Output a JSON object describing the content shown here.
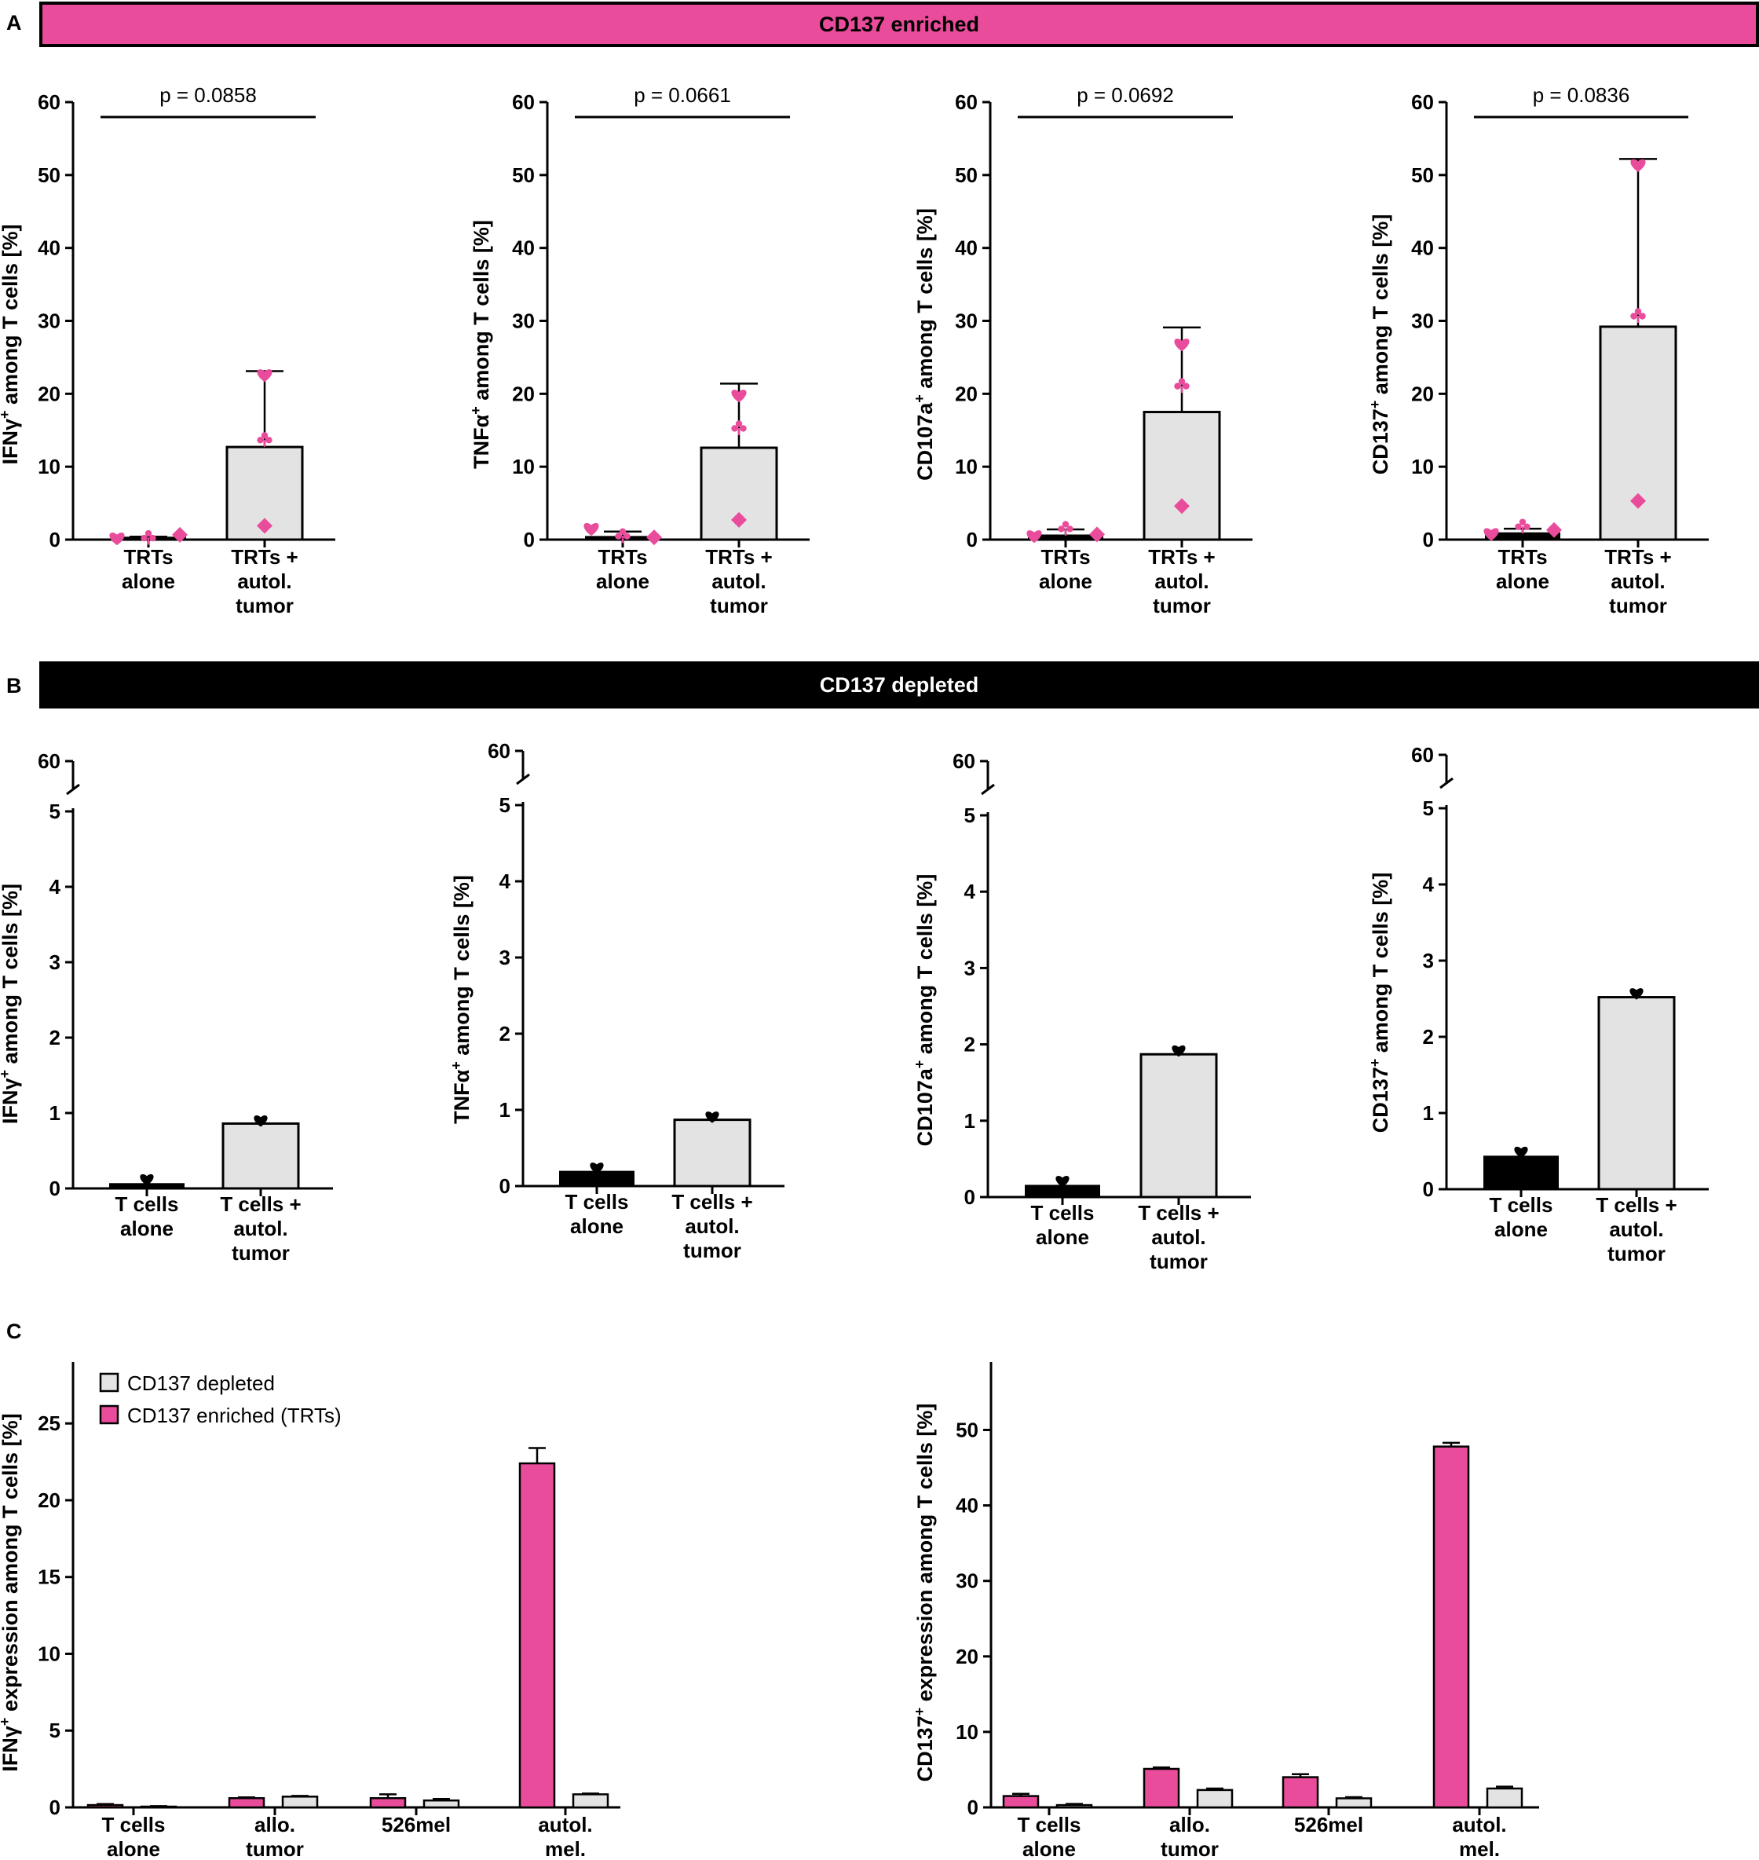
{
  "panel_labels": {
    "A": "A",
    "B": "B",
    "C": "C"
  },
  "banners": {
    "enriched": "CD137 enriched",
    "depleted": "CD137 depleted"
  },
  "colors": {
    "pink": "#e94c9a",
    "gray_bar": "#e3e3e3",
    "black": "#000000"
  },
  "chart_data": [
    {
      "id": "A1",
      "type": "bar",
      "categories": [
        "TRTs alone",
        "TRTs + autol. tumor"
      ],
      "values": [
        0.4,
        12.7
      ],
      "errors": [
        0.4,
        23.1
      ],
      "ylim": [
        0,
        60
      ],
      "yticks": [
        0,
        10,
        20,
        30,
        40,
        50,
        60
      ],
      "ylabel_main": "IFNγ",
      "ylabel_rest": " among T cells [%]",
      "ylabel_sup": "+",
      "pvalue": "p = 0.0858",
      "points": [
        [
          0.1,
          0.05,
          0.45
        ],
        [
          22.7,
          13.7,
          1.9
        ]
      ],
      "point_color": "#e94c9a"
    },
    {
      "id": "A2",
      "type": "bar",
      "categories": [
        "TRTs alone",
        "TRTs + autol. tumor"
      ],
      "values": [
        0.5,
        12.6
      ],
      "errors": [
        1.1,
        21.4
      ],
      "ylim": [
        0,
        60
      ],
      "yticks": [
        0,
        10,
        20,
        30,
        40,
        50,
        60
      ],
      "ylabel_main": "TNFα",
      "ylabel_rest": " among T cells [%]",
      "ylabel_sup": "+",
      "pvalue": "p = 0.0661",
      "points": [
        [
          1.4,
          0.3,
          0.1
        ],
        [
          19.9,
          15.3,
          2.7
        ]
      ],
      "point_color": "#e94c9a"
    },
    {
      "id": "A3",
      "type": "bar",
      "categories": [
        "TRTs alone",
        "TRTs + autol. tumor"
      ],
      "values": [
        0.7,
        17.5
      ],
      "errors": [
        1.4,
        29.1
      ],
      "ylim": [
        0,
        60
      ],
      "yticks": [
        0,
        10,
        20,
        30,
        40,
        50,
        60
      ],
      "ylabel_main": "CD107a",
      "ylabel_rest": " among T cells [%]",
      "ylabel_sup": "+",
      "pvalue": "p = 0.0692",
      "points": [
        [
          0.4,
          1.3,
          0.5
        ],
        [
          26.9,
          21.1,
          4.6
        ]
      ],
      "point_color": "#e94c9a"
    },
    {
      "id": "A4",
      "type": "bar",
      "categories": [
        "TRTs alone",
        "TRTs + autol. tumor"
      ],
      "values": [
        1.0,
        29.2
      ],
      "errors": [
        1.5,
        52.2
      ],
      "ylim": [
        0,
        60
      ],
      "yticks": [
        0,
        10,
        20,
        30,
        40,
        50,
        60
      ],
      "ylabel_main": "CD137",
      "ylabel_rest": " among T cells [%]",
      "ylabel_sup": "+",
      "pvalue": "p = 0.0836",
      "points": [
        [
          0.7,
          1.6,
          1.1
        ],
        [
          51.5,
          30.7,
          5.3
        ]
      ],
      "point_color": "#e94c9a"
    },
    {
      "id": "B1",
      "type": "bar",
      "categories": [
        "T cells alone",
        "T cells + autol. tumor"
      ],
      "values": [
        0.07,
        0.86
      ],
      "ylim": [
        0,
        5
      ],
      "yticks": [
        0,
        1,
        2,
        3,
        4,
        5
      ],
      "ytop_break": "60",
      "ylabel_main": "IFNγ",
      "ylabel_rest": " among T cells [%]",
      "ylabel_sup": "+",
      "points": [
        0.1,
        0.88
      ],
      "point_color": "#000000"
    },
    {
      "id": "B2",
      "type": "bar",
      "categories": [
        "T cells alone",
        "T cells + autol. tumor"
      ],
      "values": [
        0.2,
        0.87
      ],
      "ylim": [
        0,
        5
      ],
      "yticks": [
        0,
        1,
        2,
        3,
        4,
        5
      ],
      "ytop_break": "60",
      "ylabel_main": "TNFα",
      "ylabel_rest": " among T cells [%]",
      "ylabel_sup": "+",
      "points": [
        0.22,
        0.89
      ],
      "point_color": "#000000"
    },
    {
      "id": "B3",
      "type": "bar",
      "categories": [
        "T cells alone",
        "T cells + autol. tumor"
      ],
      "values": [
        0.16,
        1.87
      ],
      "ylim": [
        0,
        5
      ],
      "yticks": [
        0,
        1,
        2,
        3,
        4,
        5
      ],
      "ytop_break": "60",
      "ylabel_main": "CD107a",
      "ylabel_rest": " among T cells [%]",
      "ylabel_sup": "+",
      "points": [
        0.19,
        1.9
      ],
      "point_color": "#000000"
    },
    {
      "id": "B4",
      "type": "bar",
      "categories": [
        "T cells alone",
        "T cells + autol. tumor"
      ],
      "values": [
        0.44,
        2.52
      ],
      "ylim": [
        0,
        5
      ],
      "yticks": [
        0,
        1,
        2,
        3,
        4,
        5
      ],
      "ytop_break": "60",
      "ylabel_main": "CD137",
      "ylabel_rest": " among T cells [%]",
      "ylabel_sup": "+",
      "points": [
        0.47,
        2.55
      ],
      "point_color": "#000000"
    },
    {
      "id": "C1",
      "type": "bar",
      "categories": [
        "T cells alone",
        "allo. tumor",
        "526mel",
        "autol. mel."
      ],
      "series": [
        {
          "name": "CD137 enriched (TRTs)",
          "values": [
            0.15,
            0.6,
            0.6,
            22.4
          ],
          "errors": [
            0.22,
            0.65,
            0.85,
            23.4
          ]
        },
        {
          "name": "CD137 depleted",
          "values": [
            0.05,
            0.7,
            0.45,
            0.85
          ],
          "errors": [
            0.08,
            0.75,
            0.55,
            0.9
          ]
        }
      ],
      "ylim": [
        0,
        29
      ],
      "yticks": [
        0,
        5,
        10,
        15,
        20,
        25
      ],
      "ylabel_main": "IFNγ",
      "ylabel_rest": " expression among T cells [%]",
      "ylabel_sup": "+",
      "legend": [
        "CD137 depleted",
        "CD137 enriched (TRTs)"
      ]
    },
    {
      "id": "C2",
      "type": "bar",
      "categories": [
        "T cells alone",
        "allo. tumor",
        "526mel",
        "autol. mel."
      ],
      "series": [
        {
          "name": "CD137 enriched (TRTs)",
          "values": [
            1.5,
            5.1,
            4.0,
            47.8
          ],
          "errors": [
            1.8,
            5.3,
            4.4,
            48.3
          ]
        },
        {
          "name": "CD137 depleted",
          "values": [
            0.3,
            2.3,
            1.2,
            2.5
          ],
          "errors": [
            0.45,
            2.5,
            1.35,
            2.75
          ]
        }
      ],
      "ylim": [
        0,
        59
      ],
      "yticks": [
        0,
        10,
        20,
        30,
        40,
        50
      ],
      "ylabel_main": "CD137",
      "ylabel_rest": " expression among T cells [%]",
      "ylabel_sup": "+"
    }
  ]
}
